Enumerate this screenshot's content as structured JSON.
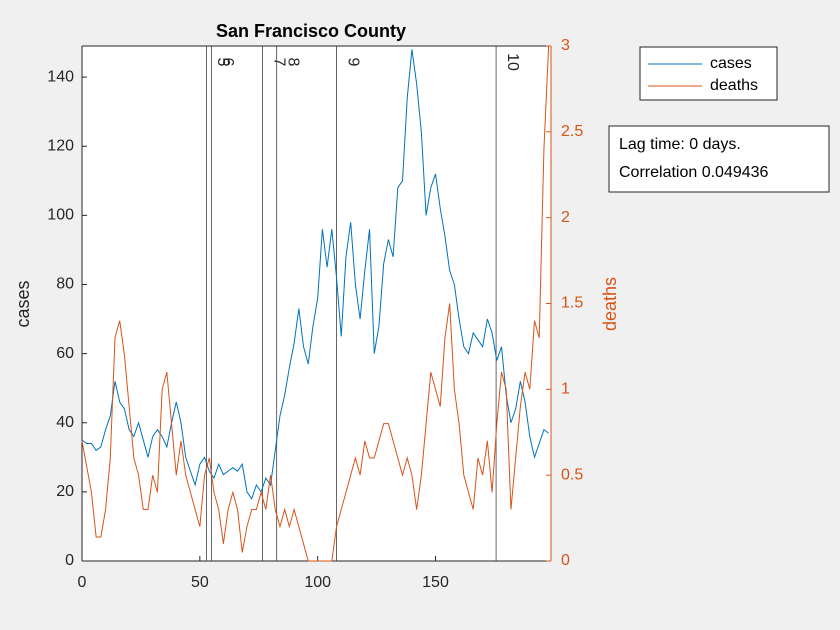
{
  "chart_data": {
    "type": "line",
    "title": "San Francisco County",
    "ylabel": "cases",
    "y2label": "deaths",
    "x": [
      0,
      2,
      4,
      6,
      8,
      10,
      12,
      14,
      16,
      18,
      20,
      22,
      24,
      26,
      28,
      30,
      32,
      34,
      36,
      38,
      40,
      42,
      44,
      46,
      48,
      50,
      52,
      54,
      56,
      58,
      60,
      62,
      64,
      66,
      68,
      70,
      72,
      74,
      76,
      78,
      80,
      82,
      84,
      86,
      88,
      90,
      92,
      94,
      96,
      98,
      100,
      102,
      104,
      106,
      108,
      110,
      112,
      114,
      116,
      118,
      120,
      122,
      124,
      126,
      128,
      130,
      132,
      134,
      136,
      138,
      140,
      142,
      144,
      146,
      148,
      150,
      152,
      154,
      156,
      158,
      160,
      162,
      164,
      166,
      168,
      170,
      172,
      174,
      176,
      178,
      180,
      182,
      184,
      186,
      188,
      190,
      192,
      194,
      196,
      198
    ],
    "series": [
      {
        "name": "cases",
        "color": "#0072BD",
        "values": [
          35,
          34,
          34,
          32,
          33,
          38,
          42,
          52,
          46,
          44,
          38,
          36,
          40,
          35,
          30,
          36,
          38,
          36,
          33,
          40,
          46,
          40,
          30,
          26,
          22,
          28,
          30,
          26,
          24,
          28,
          25,
          26,
          27,
          26,
          28,
          20,
          18,
          22,
          20,
          24,
          22,
          32,
          42,
          48,
          56,
          63,
          73,
          62,
          57,
          68,
          76,
          96,
          85,
          96,
          82,
          65,
          88,
          98,
          80,
          70,
          84,
          96,
          60,
          68,
          86,
          93,
          88,
          108,
          110,
          134,
          148,
          138,
          124,
          100,
          108,
          112,
          102,
          94,
          84,
          80,
          70,
          62,
          60,
          66,
          64,
          62,
          70,
          66,
          58,
          62,
          48,
          40,
          44,
          52,
          46,
          36,
          30,
          34,
          38,
          37
        ]
      },
      {
        "name": "deaths",
        "color": "#D95319",
        "axis": "y2",
        "values": [
          0.7,
          0.55,
          0.4,
          0.14,
          0.14,
          0.3,
          0.6,
          1.3,
          1.4,
          1.2,
          0.9,
          0.6,
          0.5,
          0.3,
          0.3,
          0.5,
          0.4,
          1.0,
          1.1,
          0.8,
          0.5,
          0.7,
          0.5,
          0.4,
          0.3,
          0.2,
          0.5,
          0.6,
          0.4,
          0.3,
          0.1,
          0.3,
          0.4,
          0.3,
          0.05,
          0.2,
          0.3,
          0.3,
          0.4,
          0.3,
          0.5,
          0.3,
          0.2,
          0.3,
          0.2,
          0.3,
          0.2,
          0.1,
          0,
          0,
          0,
          0,
          0,
          0,
          0.2,
          0.3,
          0.4,
          0.5,
          0.6,
          0.5,
          0.7,
          0.6,
          0.6,
          0.7,
          0.8,
          0.8,
          0.7,
          0.6,
          0.5,
          0.6,
          0.5,
          0.3,
          0.5,
          0.8,
          1.1,
          1.0,
          0.9,
          1.3,
          1.5,
          1.0,
          0.8,
          0.5,
          0.4,
          0.3,
          0.6,
          0.5,
          0.7,
          0.4,
          0.8,
          1.1,
          1.0,
          0.3,
          0.6,
          0.9,
          1.1,
          1.0,
          1.4,
          1.3,
          2.4,
          3.0
        ]
      }
    ],
    "xlim": [
      0,
      199
    ],
    "xticks": [
      0,
      50,
      100,
      150
    ],
    "ylim": [
      0,
      149
    ],
    "yticks": [
      0,
      20,
      40,
      60,
      80,
      100,
      120,
      140
    ],
    "y2lim": [
      0,
      3
    ],
    "y2ticks": [
      0,
      0.5,
      1,
      1.5,
      2,
      2.5,
      3
    ],
    "events": [
      {
        "x": 52.8,
        "label": "5"
      },
      {
        "x": 54.9,
        "label": "6"
      },
      {
        "x": 76.6,
        "label": "7"
      },
      {
        "x": 82.6,
        "label": "8"
      },
      {
        "x": 108,
        "label": "9"
      },
      {
        "x": 175.7,
        "label": "10"
      }
    ],
    "annotation": [
      "Lag time: 0 days.",
      "Correlation 0.049436"
    ]
  }
}
